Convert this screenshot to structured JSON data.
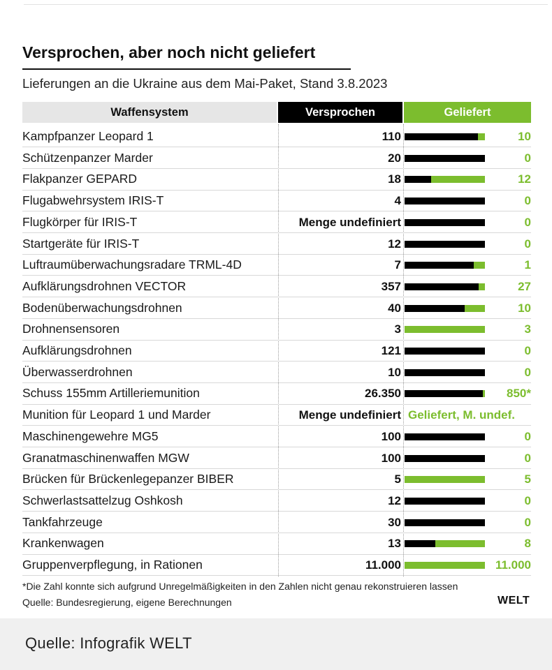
{
  "title": "Versprochen, aber noch nicht geliefert",
  "subtitle": "Lieferungen an die Ukraine aus dem Mai-Paket, Stand 3.8.2023",
  "headers": {
    "system": "Waffensystem",
    "promised": "Versprochen",
    "delivered": "Geliefert"
  },
  "colors": {
    "promised": "#000000",
    "delivered": "#7cbd2e",
    "header_bg": "#e6e6e6"
  },
  "chart_data": {
    "type": "table",
    "columns": [
      "Waffensystem",
      "Versprochen",
      "Geliefert"
    ],
    "rows": [
      {
        "name": "Kampfpanzer Leopard 1",
        "promised": "110",
        "delivered": "10",
        "delivered_share": 0.09
      },
      {
        "name": "Schützenpanzer Marder",
        "promised": "20",
        "delivered": "0",
        "delivered_share": 0
      },
      {
        "name": "Flakpanzer GEPARD",
        "promised": "18",
        "delivered": "12",
        "delivered_share": 0.67
      },
      {
        "name": "Flugabwehrsystem IRIS-T",
        "promised": "4",
        "delivered": "0",
        "delivered_share": 0
      },
      {
        "name": "Flugkörper für IRIS-T",
        "promised": "Menge undefiniert",
        "delivered": "0",
        "delivered_share": 0
      },
      {
        "name": "Startgeräte für IRIS-T",
        "promised": "12",
        "delivered": "0",
        "delivered_share": 0
      },
      {
        "name": "Luftraumüberwachungsradare TRML-4D",
        "promised": "7",
        "delivered": "1",
        "delivered_share": 0.14
      },
      {
        "name": "Aufklärungsdrohnen VECTOR",
        "promised": "357",
        "delivered": "27",
        "delivered_share": 0.08
      },
      {
        "name": "Bodenüberwachungsdrohnen",
        "promised": "40",
        "delivered": "10",
        "delivered_share": 0.25
      },
      {
        "name": "Drohnensensoren",
        "promised": "3",
        "delivered": "3",
        "delivered_share": 1
      },
      {
        "name": "Aufklärungsdrohnen",
        "promised": "121",
        "delivered": "0",
        "delivered_share": 0
      },
      {
        "name": "Überwasserdrohnen",
        "promised": "10",
        "delivered": "0",
        "delivered_share": 0
      },
      {
        "name": "Schuss 155mm Artilleriemunition",
        "promised": "26.350",
        "delivered": "850*",
        "delivered_share": 0.03
      },
      {
        "name": "Munition für Leopard 1 und Marder",
        "promised": "Menge undefiniert",
        "delivered": "Geliefert, M. undef.",
        "delivered_share": null
      },
      {
        "name": "Maschinengewehre MG5",
        "promised": "100",
        "delivered": "0",
        "delivered_share": 0
      },
      {
        "name": "Granatmaschinenwaffen MGW",
        "promised": "100",
        "delivered": "0",
        "delivered_share": 0
      },
      {
        "name": "Brücken für Brückenlegepanzer BIBER",
        "promised": "5",
        "delivered": "5",
        "delivered_share": 1
      },
      {
        "name": "Schwerlastsattelzug Oshkosh",
        "promised": "12",
        "delivered": "0",
        "delivered_share": 0
      },
      {
        "name": "Tankfahrzeuge",
        "promised": "30",
        "delivered": "0",
        "delivered_share": 0
      },
      {
        "name": "Krankenwagen",
        "promised": "13",
        "delivered": "8",
        "delivered_share": 0.62
      },
      {
        "name": "Gruppenverpflegung, in Rationen",
        "promised": "11.000",
        "delivered": "11.000",
        "delivered_share": 1
      }
    ]
  },
  "footnote": "*Die Zahl konnte sich aufgrund Unregelmäßigkeiten in den Zahlen nicht genau rekonstruieren lassen",
  "source": "Quelle: Bundesregierung, eigene Berechnungen",
  "brand": "WELT",
  "credit": "Quelle: Infografik WELT"
}
